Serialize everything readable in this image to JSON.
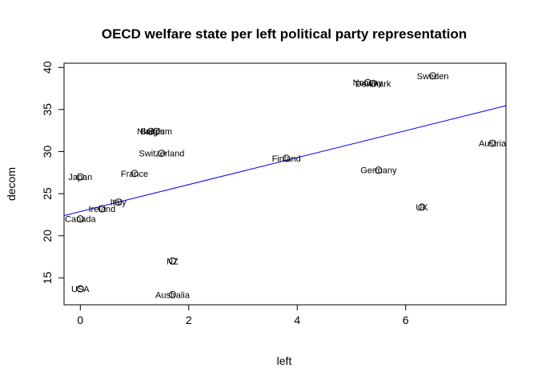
{
  "chart_data": {
    "type": "scatter",
    "title": "OECD welfare state per left political party representation",
    "xlabel": "left",
    "ylabel": "decom",
    "xlim": [
      -0.3,
      7.85
    ],
    "ylim": [
      11.8,
      40.5
    ],
    "xticks": [
      "0",
      "2",
      "4",
      "6"
    ],
    "yticks": [
      "15",
      "20",
      "25",
      "30",
      "35",
      "40"
    ],
    "grid": false,
    "regression_line": {
      "color": "#0000ff",
      "x": [
        -0.3,
        7.85
      ],
      "y": [
        22.4,
        35.45
      ]
    },
    "points": [
      {
        "label": "Japan",
        "x": 0.0,
        "y": 27.0
      },
      {
        "label": "Canada",
        "x": 0.0,
        "y": 22.0
      },
      {
        "label": "USA",
        "x": 0.0,
        "y": 13.7
      },
      {
        "label": "Ireland",
        "x": 0.4,
        "y": 23.2
      },
      {
        "label": "Italy",
        "x": 0.7,
        "y": 24.0
      },
      {
        "label": "France",
        "x": 1.0,
        "y": 27.4
      },
      {
        "label": "Nlands",
        "x": 1.3,
        "y": 32.4
      },
      {
        "label": "Belgium",
        "x": 1.4,
        "y": 32.4
      },
      {
        "label": "Switzerland",
        "x": 1.5,
        "y": 29.8
      },
      {
        "label": "NZ",
        "x": 1.7,
        "y": 17.0
      },
      {
        "label": "Australia",
        "x": 1.7,
        "y": 13.0
      },
      {
        "label": "Finland",
        "x": 3.8,
        "y": 29.2
      },
      {
        "label": "Norway",
        "x": 5.3,
        "y": 38.2
      },
      {
        "label": "Denmark",
        "x": 5.4,
        "y": 38.1
      },
      {
        "label": "Germany",
        "x": 5.5,
        "y": 27.8
      },
      {
        "label": "UK",
        "x": 6.3,
        "y": 23.4
      },
      {
        "label": "Sweden",
        "x": 6.5,
        "y": 39.0
      },
      {
        "label": "Austria",
        "x": 7.6,
        "y": 31.0
      }
    ]
  }
}
